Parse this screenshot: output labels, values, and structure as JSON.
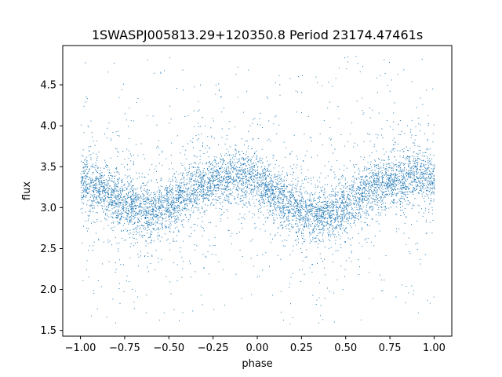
{
  "chart_data": {
    "type": "scatter",
    "title": "1SWASPJ005813.29+120350.8 Period 23174.47461s",
    "xlabel": "phase",
    "ylabel": "flux",
    "xlim": [
      -1.1,
      1.1
    ],
    "ylim": [
      1.43,
      4.98
    ],
    "x_ticks": [
      -1.0,
      -0.75,
      -0.5,
      -0.25,
      0.0,
      0.25,
      0.5,
      0.75,
      1.0
    ],
    "x_tick_labels": [
      "−1.00",
      "−0.75",
      "−0.50",
      "−0.25",
      "0.00",
      "0.25",
      "0.50",
      "0.75",
      "1.00"
    ],
    "y_ticks": [
      1.5,
      2.0,
      2.5,
      3.0,
      3.5,
      4.0,
      4.5
    ],
    "y_tick_labels": [
      "1.5",
      "2.0",
      "2.5",
      "3.0",
      "3.5",
      "4.0",
      "4.5"
    ],
    "grid": false,
    "marker_color": "#1f77b4",
    "series": [
      {
        "x": [
          -1.0,
          -0.9,
          -0.8,
          -0.7,
          -0.6,
          -0.5,
          -0.4,
          -0.3,
          -0.2,
          -0.1,
          0.0,
          0.1,
          0.2,
          0.3,
          0.4,
          0.5,
          0.6,
          0.7,
          0.8,
          0.9,
          1.0
        ],
        "y": [
          3.34,
          3.25,
          3.12,
          3.0,
          2.97,
          3.03,
          3.17,
          3.3,
          3.38,
          3.4,
          3.33,
          3.17,
          3.02,
          2.93,
          2.93,
          3.03,
          3.18,
          3.3,
          3.36,
          3.38,
          3.37
        ]
      }
    ]
  }
}
